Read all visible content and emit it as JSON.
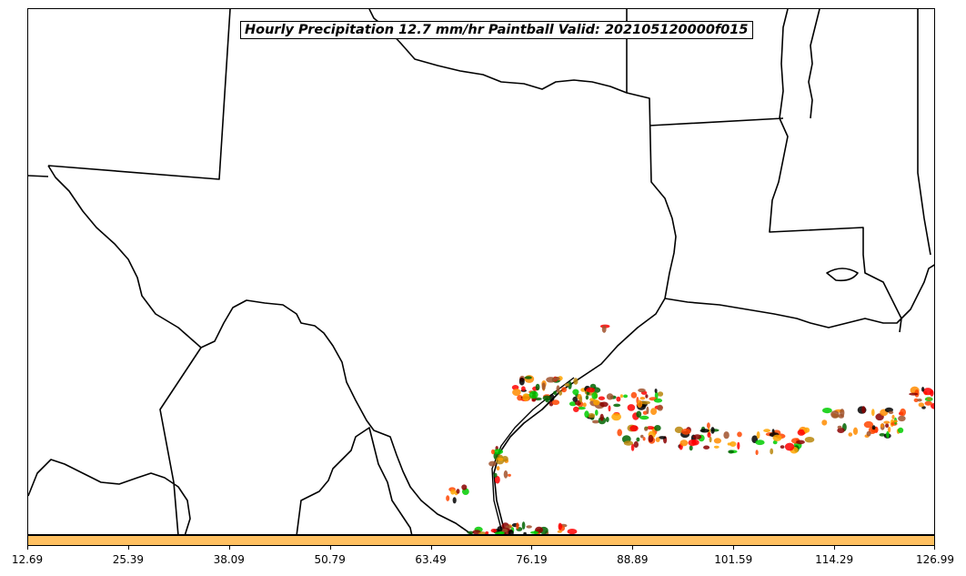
{
  "title": "Hourly Precipitation 12.7 mm/hr Paintball Valid: 202105120000f015",
  "colorbar": {
    "color": "#ffc061",
    "ticks": [
      "12.69",
      "25.39",
      "38.09",
      "50.79",
      "63.49",
      "76.19",
      "88.89",
      "101.59",
      "114.29",
      "126.99"
    ]
  },
  "colors": {
    "border": "#000000",
    "paintball_palette": [
      "#ff0000",
      "#ff8c00",
      "#ffa500",
      "#00cc00",
      "#006400",
      "#8b0000",
      "#a0522d",
      "#000000",
      "#b8860b",
      "#ff4500"
    ]
  }
}
